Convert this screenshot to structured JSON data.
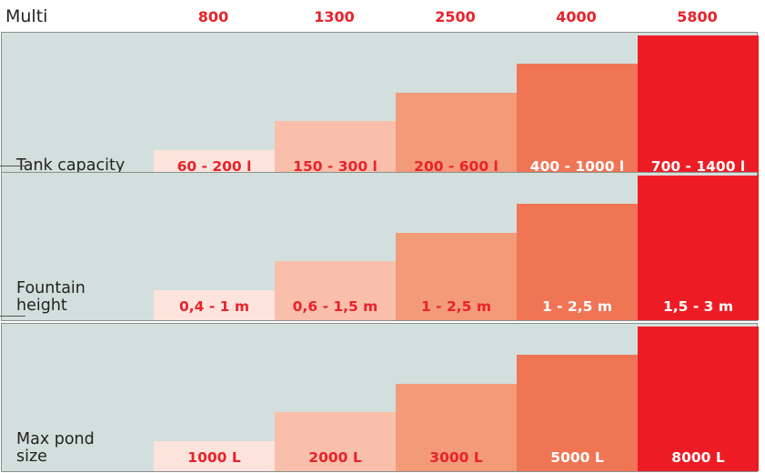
{
  "header": {
    "title": "Multi",
    "models": [
      "800",
      "1300",
      "2500",
      "4000",
      "5800"
    ]
  },
  "colors": {
    "bars": [
      "#fce4dc",
      "#f9bfaa",
      "#f39a79",
      "#f07555",
      "#ed1c24"
    ],
    "labels": [
      "#e8232b",
      "#e8232b",
      "#e8232b",
      "#ffffff",
      "#ffffff"
    ],
    "panel_bg": "#d3dfdc",
    "header_models": "#e8232b"
  },
  "chart_data": [
    {
      "type": "bar",
      "ylabel": "Tank capacity",
      "categories": [
        "800",
        "1300",
        "2500",
        "4000",
        "5800"
      ],
      "values": [
        "60 - 200 l",
        "150 - 300 l",
        "200 - 600 l",
        "400 - 1000 l",
        "700 - 1400 l"
      ],
      "relative_levels": [
        0.2,
        0.4,
        0.6,
        0.8,
        1.0
      ]
    },
    {
      "type": "bar",
      "ylabel": "Fountain\nheight",
      "categories": [
        "800",
        "1300",
        "2500",
        "4000",
        "5800"
      ],
      "values": [
        "0,4 - 1 m",
        "0,6 - 1,5 m",
        "1 - 2,5 m",
        "1 - 2,5 m",
        "1,5 - 3 m"
      ],
      "relative_levels": [
        0.2,
        0.4,
        0.6,
        0.8,
        1.0
      ]
    },
    {
      "type": "bar",
      "ylabel": "Max pond\nsize",
      "categories": [
        "800",
        "1300",
        "2500",
        "4000",
        "5800"
      ],
      "values": [
        "1000 L",
        "2000 L",
        "3000 L",
        "5000 L",
        "8000 L"
      ],
      "relative_levels": [
        0.2,
        0.4,
        0.6,
        0.8,
        1.0
      ]
    }
  ]
}
